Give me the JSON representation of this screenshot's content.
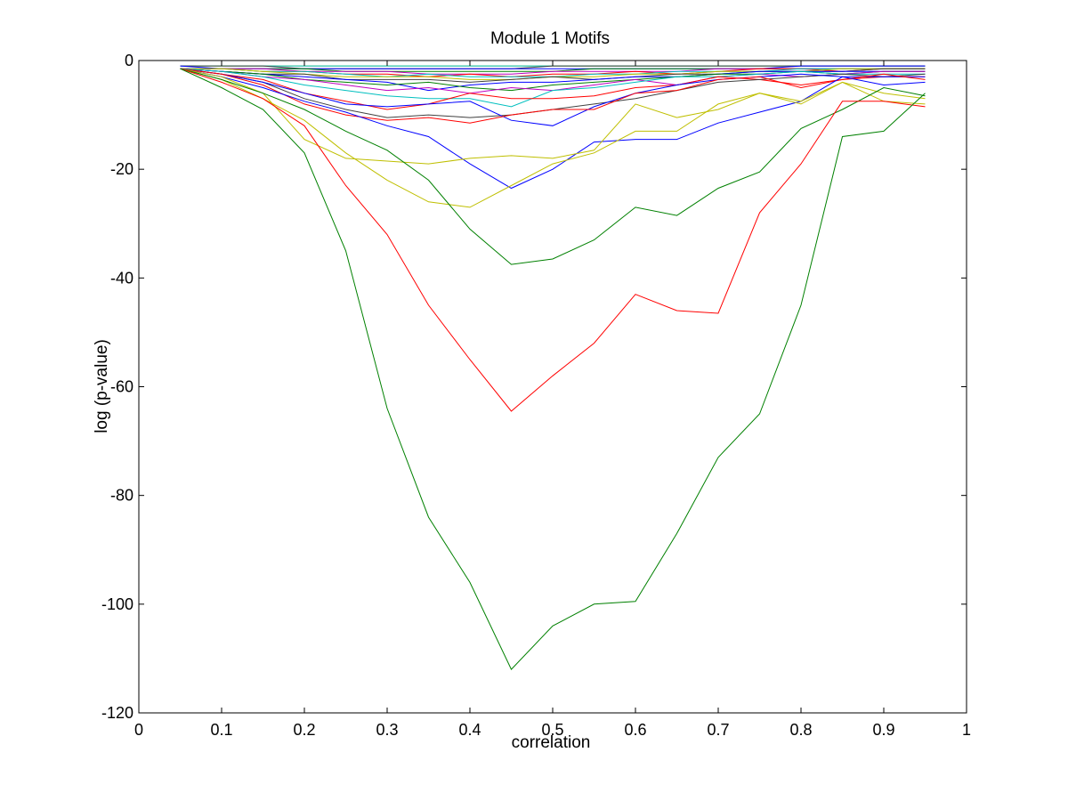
{
  "chart_data": {
    "type": "line",
    "title": "Module 1 Motifs",
    "xlabel": "correlation",
    "ylabel": "log (p-value)",
    "xlim": [
      0,
      1
    ],
    "ylim": [
      -120,
      0
    ],
    "xticks": [
      0,
      0.1,
      0.2,
      0.3,
      0.4,
      0.5,
      0.6,
      0.7,
      0.8,
      0.9,
      1
    ],
    "xtick_labels": [
      "0",
      "0.1",
      "0.2",
      "0.3",
      "0.4",
      "0.5",
      "0.6",
      "0.7",
      "0.8",
      "0.9",
      "1"
    ],
    "yticks": [
      0,
      -20,
      -40,
      -60,
      -80,
      -100,
      -120
    ],
    "ytick_labels": [
      "0",
      "-20",
      "-40",
      "-60",
      "-80",
      "-100",
      "-120"
    ],
    "grid": false,
    "legend": "none",
    "x": [
      0.05,
      0.1,
      0.15,
      0.2,
      0.25,
      0.3,
      0.35,
      0.4,
      0.45,
      0.5,
      0.55,
      0.6,
      0.65,
      0.7,
      0.75,
      0.8,
      0.85,
      0.9,
      0.95
    ],
    "series": [
      {
        "color": "#008000",
        "values": [
          -1.5,
          -5,
          -9,
          -17,
          -35,
          -64,
          -84,
          -96,
          -112,
          -104,
          -100,
          -99.5,
          -87,
          -73,
          -65,
          -45,
          -14,
          -13,
          -6
        ]
      },
      {
        "color": "#ff0000",
        "values": [
          -1.5,
          -4,
          -7,
          -12,
          -23,
          -32,
          -45,
          -55,
          -64.5,
          -58,
          -52,
          -43,
          -46,
          -46.5,
          -28,
          -19,
          -7.5,
          -7.5,
          -8.5
        ]
      },
      {
        "color": "#008000",
        "values": [
          -1.5,
          -3.5,
          -6,
          -9,
          -13,
          -16.5,
          -22,
          -31,
          -37.5,
          -36.5,
          -33,
          -27,
          -28.5,
          -23.5,
          -20.5,
          -12.5,
          -9,
          -5,
          -6.5
        ]
      },
      {
        "color": "#bfbf00",
        "values": [
          -1.5,
          -3.5,
          -7,
          -11,
          -17,
          -22,
          -26,
          -27,
          -23,
          -19,
          -17,
          -13,
          -13,
          -8,
          -6,
          -8,
          -4,
          -6,
          -7
        ]
      },
      {
        "color": "#bfbf00",
        "values": [
          -1.5,
          -3,
          -6,
          -14.5,
          -18,
          -18.5,
          -19,
          -18,
          -17.5,
          -18,
          -16.5,
          -8,
          -10.5,
          -9,
          -6,
          -7.5,
          -4,
          -7.5,
          -8
        ]
      },
      {
        "color": "#0000ff",
        "values": [
          -1.5,
          -3,
          -5,
          -7.5,
          -9.5,
          -12,
          -14,
          -19,
          -23.5,
          -20,
          -15,
          -14.5,
          -14.5,
          -11.5,
          -9.5,
          -7.5,
          -3,
          -4.5,
          -4
        ]
      },
      {
        "color": "#ff0000",
        "values": [
          -1.5,
          -2.5,
          -4.5,
          -8,
          -10,
          -11,
          -10.5,
          -11.5,
          -10,
          -9,
          -9,
          -6,
          -5.5,
          -3.5,
          -3,
          -5,
          -3.5,
          -2.5,
          -3.5
        ]
      },
      {
        "color": "#0000ff",
        "values": [
          -1.5,
          -2.5,
          -4,
          -6,
          -8,
          -8.5,
          -8,
          -7.5,
          -11,
          -12,
          -8.5,
          -6,
          -4.5,
          -3.5,
          -3,
          -2.5,
          -3,
          -3,
          -3
        ]
      },
      {
        "color": "#404040",
        "values": [
          -1.5,
          -2.5,
          -4,
          -7,
          -9,
          -10.5,
          -10,
          -10.5,
          -10,
          -9,
          -8,
          -7,
          -5.5,
          -4,
          -3.5,
          -3,
          -2.5,
          -3,
          -2.5
        ]
      },
      {
        "color": "#ff0000",
        "values": [
          -1.5,
          -2.5,
          -3.5,
          -6,
          -7.5,
          -9,
          -8,
          -6,
          -7,
          -7,
          -6.5,
          -5,
          -4.5,
          -3,
          -3.5,
          -4.5,
          -3.5,
          -3,
          -3
        ]
      },
      {
        "color": "#00bfbf",
        "values": [
          -1.5,
          -2,
          -3,
          -4.5,
          -5.5,
          -6.5,
          -7,
          -7,
          -8.5,
          -5.5,
          -5,
          -4,
          -3,
          -3,
          -2.5,
          -2,
          -2.5,
          -2.5,
          -2.5
        ]
      },
      {
        "color": "#bf00bf",
        "values": [
          -1.5,
          -2,
          -3,
          -3.5,
          -4.5,
          -5.5,
          -5,
          -6,
          -5,
          -5.5,
          -4.5,
          -3.5,
          -4.5,
          -3,
          -2.5,
          -3,
          -2.5,
          -2,
          -2
        ]
      },
      {
        "color": "#008000",
        "values": [
          -1.5,
          -2,
          -2.5,
          -3.5,
          -4,
          -4.5,
          -4,
          -5,
          -5.5,
          -4.5,
          -4,
          -3.5,
          -3,
          -2.5,
          -2.5,
          -2,
          -2.5,
          -2,
          -2
        ]
      },
      {
        "color": "#0000ff",
        "values": [
          -1.5,
          -2,
          -2.5,
          -3,
          -3.5,
          -4,
          -5.5,
          -4.5,
          -4,
          -4,
          -3.5,
          -3,
          -3,
          -2.5,
          -2,
          -2,
          -2,
          -2,
          -2
        ]
      },
      {
        "color": "#404040",
        "values": [
          -1.5,
          -2,
          -2.5,
          -2.5,
          -3.5,
          -3.5,
          -3.5,
          -4,
          -3.5,
          -3,
          -3.5,
          -3,
          -2.5,
          -2.5,
          -2,
          -2,
          -2,
          -1.5,
          -1.5
        ]
      },
      {
        "color": "#bfbf00",
        "values": [
          -1.5,
          -1.5,
          -2,
          -2.5,
          -3,
          -3,
          -3,
          -3.5,
          -3.5,
          -3,
          -3,
          -2.5,
          -2.5,
          -2,
          -2,
          -2,
          -1.5,
          -1.5,
          -1.5
        ]
      },
      {
        "color": "#00bfbf",
        "values": [
          -1.5,
          -1.5,
          -2,
          -2,
          -2.5,
          -3,
          -2.5,
          -3,
          -3,
          -3,
          -2.5,
          -2.5,
          -2,
          -2,
          -2,
          -1.5,
          -1.5,
          -1.5,
          -1.5
        ]
      },
      {
        "color": "#ff0000",
        "values": [
          -1.5,
          -1.5,
          -2,
          -2,
          -2.5,
          -2.5,
          -3,
          -2.5,
          -3,
          -2.5,
          -2.5,
          -2,
          -2.5,
          -2,
          -1.5,
          -1.5,
          -2,
          -1.5,
          -1.5
        ]
      },
      {
        "color": "#bf00bf",
        "values": [
          -1.5,
          -1.5,
          -1.5,
          -2,
          -2,
          -2,
          -2.5,
          -2.5,
          -2.5,
          -2,
          -2,
          -2,
          -2,
          -1.5,
          -1.5,
          -1.5,
          -1.5,
          -1.5,
          -1.5
        ]
      },
      {
        "color": "#008000",
        "values": [
          -1.5,
          -1.5,
          -1.5,
          -1.5,
          -2,
          -2,
          -2,
          -2,
          -2,
          -2,
          -1.5,
          -1.5,
          -1.5,
          -1.5,
          -1.5,
          -1.5,
          -1.5,
          -1.5,
          -1.5
        ]
      },
      {
        "color": "#0000ff",
        "values": [
          -1,
          -1.5,
          -1.5,
          -1.5,
          -1.5,
          -1.5,
          -1.5,
          -1.5,
          -1.5,
          -1.5,
          -1.5,
          -1.5,
          -1.5,
          -1.5,
          -1.5,
          -1,
          -1,
          -1,
          -1
        ]
      },
      {
        "color": "#404040",
        "values": [
          -1,
          -1,
          -1,
          -1.5,
          -1.5,
          -1.5,
          -1.5,
          -1.5,
          -1.5,
          -1,
          -1,
          -1,
          -1,
          -1,
          -1,
          -1,
          -1,
          -1,
          -1
        ]
      },
      {
        "color": "#00bfbf",
        "values": [
          -1,
          -1,
          -1,
          -1,
          -1,
          -1,
          -1,
          -1,
          -1,
          -1,
          -1,
          -1,
          -1,
          -1,
          -1,
          -1,
          -1,
          -1,
          -1
        ]
      },
      {
        "color": "#bfbf00",
        "values": [
          -1,
          -1,
          -1,
          -1,
          -1,
          -1,
          -1,
          -1,
          -1,
          -1,
          -1,
          -1,
          -1,
          -1,
          -1,
          -1,
          -1,
          -1,
          -1
        ]
      }
    ]
  }
}
